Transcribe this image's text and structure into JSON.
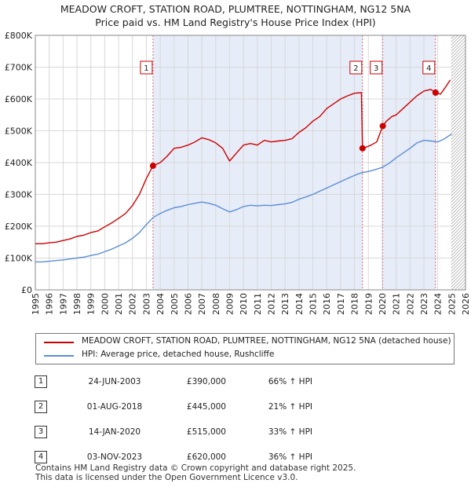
{
  "title_line1": "MEADOW CROFT, STATION ROAD, PLUMTREE, NOTTINGHAM, NG12 5NA",
  "title_line2": "Price paid vs. HM Land Registry's House Price Index (HPI)",
  "colors": {
    "property": "#cc0000",
    "hpi": "#5b8ed4",
    "sale_band": "#e6ecf8",
    "future_hatch": "#999999",
    "grid": "#d8d8d8"
  },
  "chart_data": {
    "type": "line",
    "title": "MEADOW CROFT, STATION ROAD, PLUMTREE, NOTTINGHAM, NG12 5NA",
    "subtitle": "Price paid vs. HM Land Registry's House Price Index (HPI)",
    "xlabel": "",
    "ylabel": "",
    "xlim": [
      1995,
      2026
    ],
    "ylim": [
      0,
      800000
    ],
    "x_ticks": [
      1995,
      1996,
      1997,
      1998,
      1999,
      2000,
      2001,
      2002,
      2003,
      2004,
      2005,
      2006,
      2007,
      2008,
      2009,
      2010,
      2011,
      2012,
      2013,
      2014,
      2015,
      2016,
      2017,
      2018,
      2019,
      2020,
      2021,
      2022,
      2023,
      2024,
      2025,
      2026
    ],
    "y_ticks": [
      {
        "value": 0,
        "label": "£0"
      },
      {
        "value": 100000,
        "label": "£100K"
      },
      {
        "value": 200000,
        "label": "£200K"
      },
      {
        "value": 300000,
        "label": "£300K"
      },
      {
        "value": 400000,
        "label": "£400K"
      },
      {
        "value": 500000,
        "label": "£500K"
      },
      {
        "value": 600000,
        "label": "£600K"
      },
      {
        "value": 700000,
        "label": "£700K"
      },
      {
        "value": 800000,
        "label": "£800K"
      }
    ],
    "grid": true,
    "forecast_start": 2025.0,
    "shaded_ranges": [
      [
        2003.48,
        2018.58
      ],
      [
        2020.04,
        2023.84
      ]
    ],
    "series": [
      {
        "name": "MEADOW CROFT, STATION ROAD, PLUMTREE, NOTTINGHAM, NG12 5NA (detached house)",
        "color": "#cc0000",
        "x": [
          1995.0,
          1995.5,
          1996.0,
          1996.5,
          1997.0,
          1997.5,
          1998.0,
          1998.5,
          1999.0,
          1999.5,
          2000.0,
          2000.5,
          2001.0,
          2001.5,
          2002.0,
          2002.5,
          2003.0,
          2003.48,
          2004.0,
          2004.5,
          2005.0,
          2005.5,
          2006.0,
          2006.5,
          2007.0,
          2007.5,
          2008.0,
          2008.5,
          2009.0,
          2009.5,
          2010.0,
          2010.5,
          2011.0,
          2011.5,
          2012.0,
          2012.5,
          2013.0,
          2013.5,
          2014.0,
          2014.5,
          2015.0,
          2015.5,
          2016.0,
          2016.5,
          2017.0,
          2017.5,
          2018.0,
          2018.5,
          2018.58,
          2018.8,
          2019.2,
          2019.6,
          2020.04,
          2020.3,
          2020.7,
          2021.0,
          2021.5,
          2022.0,
          2022.5,
          2023.0,
          2023.5,
          2023.84,
          2024.2,
          2024.6,
          2024.9
        ],
        "values": [
          145000,
          145000,
          148000,
          150000,
          155000,
          160000,
          168000,
          172000,
          180000,
          185000,
          198000,
          210000,
          225000,
          240000,
          265000,
          300000,
          350000,
          390000,
          400000,
          420000,
          445000,
          448000,
          455000,
          465000,
          478000,
          472000,
          462000,
          445000,
          405000,
          430000,
          455000,
          460000,
          455000,
          470000,
          465000,
          468000,
          470000,
          475000,
          495000,
          510000,
          530000,
          545000,
          570000,
          585000,
          600000,
          610000,
          618000,
          620000,
          445000,
          448000,
          455000,
          465000,
          515000,
          530000,
          545000,
          550000,
          570000,
          590000,
          610000,
          625000,
          630000,
          620000,
          615000,
          640000,
          660000
        ]
      },
      {
        "name": "HPI: Average price, detached house, Rushcliffe",
        "color": "#5b8ed4",
        "x": [
          1995.0,
          1995.5,
          1996.0,
          1996.5,
          1997.0,
          1997.5,
          1998.0,
          1998.5,
          1999.0,
          1999.5,
          2000.0,
          2000.5,
          2001.0,
          2001.5,
          2002.0,
          2002.5,
          2003.0,
          2003.5,
          2004.0,
          2004.5,
          2005.0,
          2005.5,
          2006.0,
          2006.5,
          2007.0,
          2007.5,
          2008.0,
          2008.5,
          2009.0,
          2009.5,
          2010.0,
          2010.5,
          2011.0,
          2011.5,
          2012.0,
          2012.5,
          2013.0,
          2013.5,
          2014.0,
          2014.5,
          2015.0,
          2015.5,
          2016.0,
          2016.5,
          2017.0,
          2017.5,
          2018.0,
          2018.5,
          2019.0,
          2019.5,
          2020.0,
          2020.5,
          2021.0,
          2021.5,
          2022.0,
          2022.5,
          2023.0,
          2023.5,
          2024.0,
          2024.5,
          2025.0
        ],
        "values": [
          88000,
          88000,
          90000,
          92000,
          94000,
          97000,
          100000,
          103000,
          108000,
          112000,
          120000,
          128000,
          138000,
          148000,
          162000,
          180000,
          205000,
          228000,
          240000,
          250000,
          258000,
          262000,
          268000,
          272000,
          276000,
          272000,
          266000,
          255000,
          245000,
          252000,
          262000,
          266000,
          264000,
          266000,
          265000,
          268000,
          270000,
          275000,
          285000,
          292000,
          300000,
          310000,
          320000,
          330000,
          340000,
          350000,
          360000,
          368000,
          372000,
          378000,
          385000,
          398000,
          415000,
          430000,
          445000,
          462000,
          470000,
          468000,
          465000,
          475000,
          490000
        ]
      }
    ],
    "sale_markers": [
      {
        "label": "1",
        "x": 2003.48,
        "value": 390000
      },
      {
        "label": "2",
        "x": 2018.58,
        "value": 445000
      },
      {
        "label": "3",
        "x": 2020.04,
        "value": 515000
      },
      {
        "label": "4",
        "x": 2023.84,
        "value": 620000
      }
    ]
  },
  "legend": {
    "property": "MEADOW CROFT, STATION ROAD, PLUMTREE, NOTTINGHAM, NG12 5NA (detached house)",
    "hpi": "HPI: Average price, detached house, Rushcliffe"
  },
  "sales": [
    {
      "num": "1",
      "date": "24-JUN-2003",
      "price": "£390,000",
      "hpi": "66% ↑ HPI"
    },
    {
      "num": "2",
      "date": "01-AUG-2018",
      "price": "£445,000",
      "hpi": "21% ↑ HPI"
    },
    {
      "num": "3",
      "date": "14-JAN-2020",
      "price": "£515,000",
      "hpi": "33% ↑ HPI"
    },
    {
      "num": "4",
      "date": "03-NOV-2023",
      "price": "£620,000",
      "hpi": "36% ↑ HPI"
    }
  ],
  "footer": {
    "line1": "Contains HM Land Registry data © Crown copyright and database right 2025.",
    "line2": "This data is licensed under the Open Government Licence v3.0."
  }
}
